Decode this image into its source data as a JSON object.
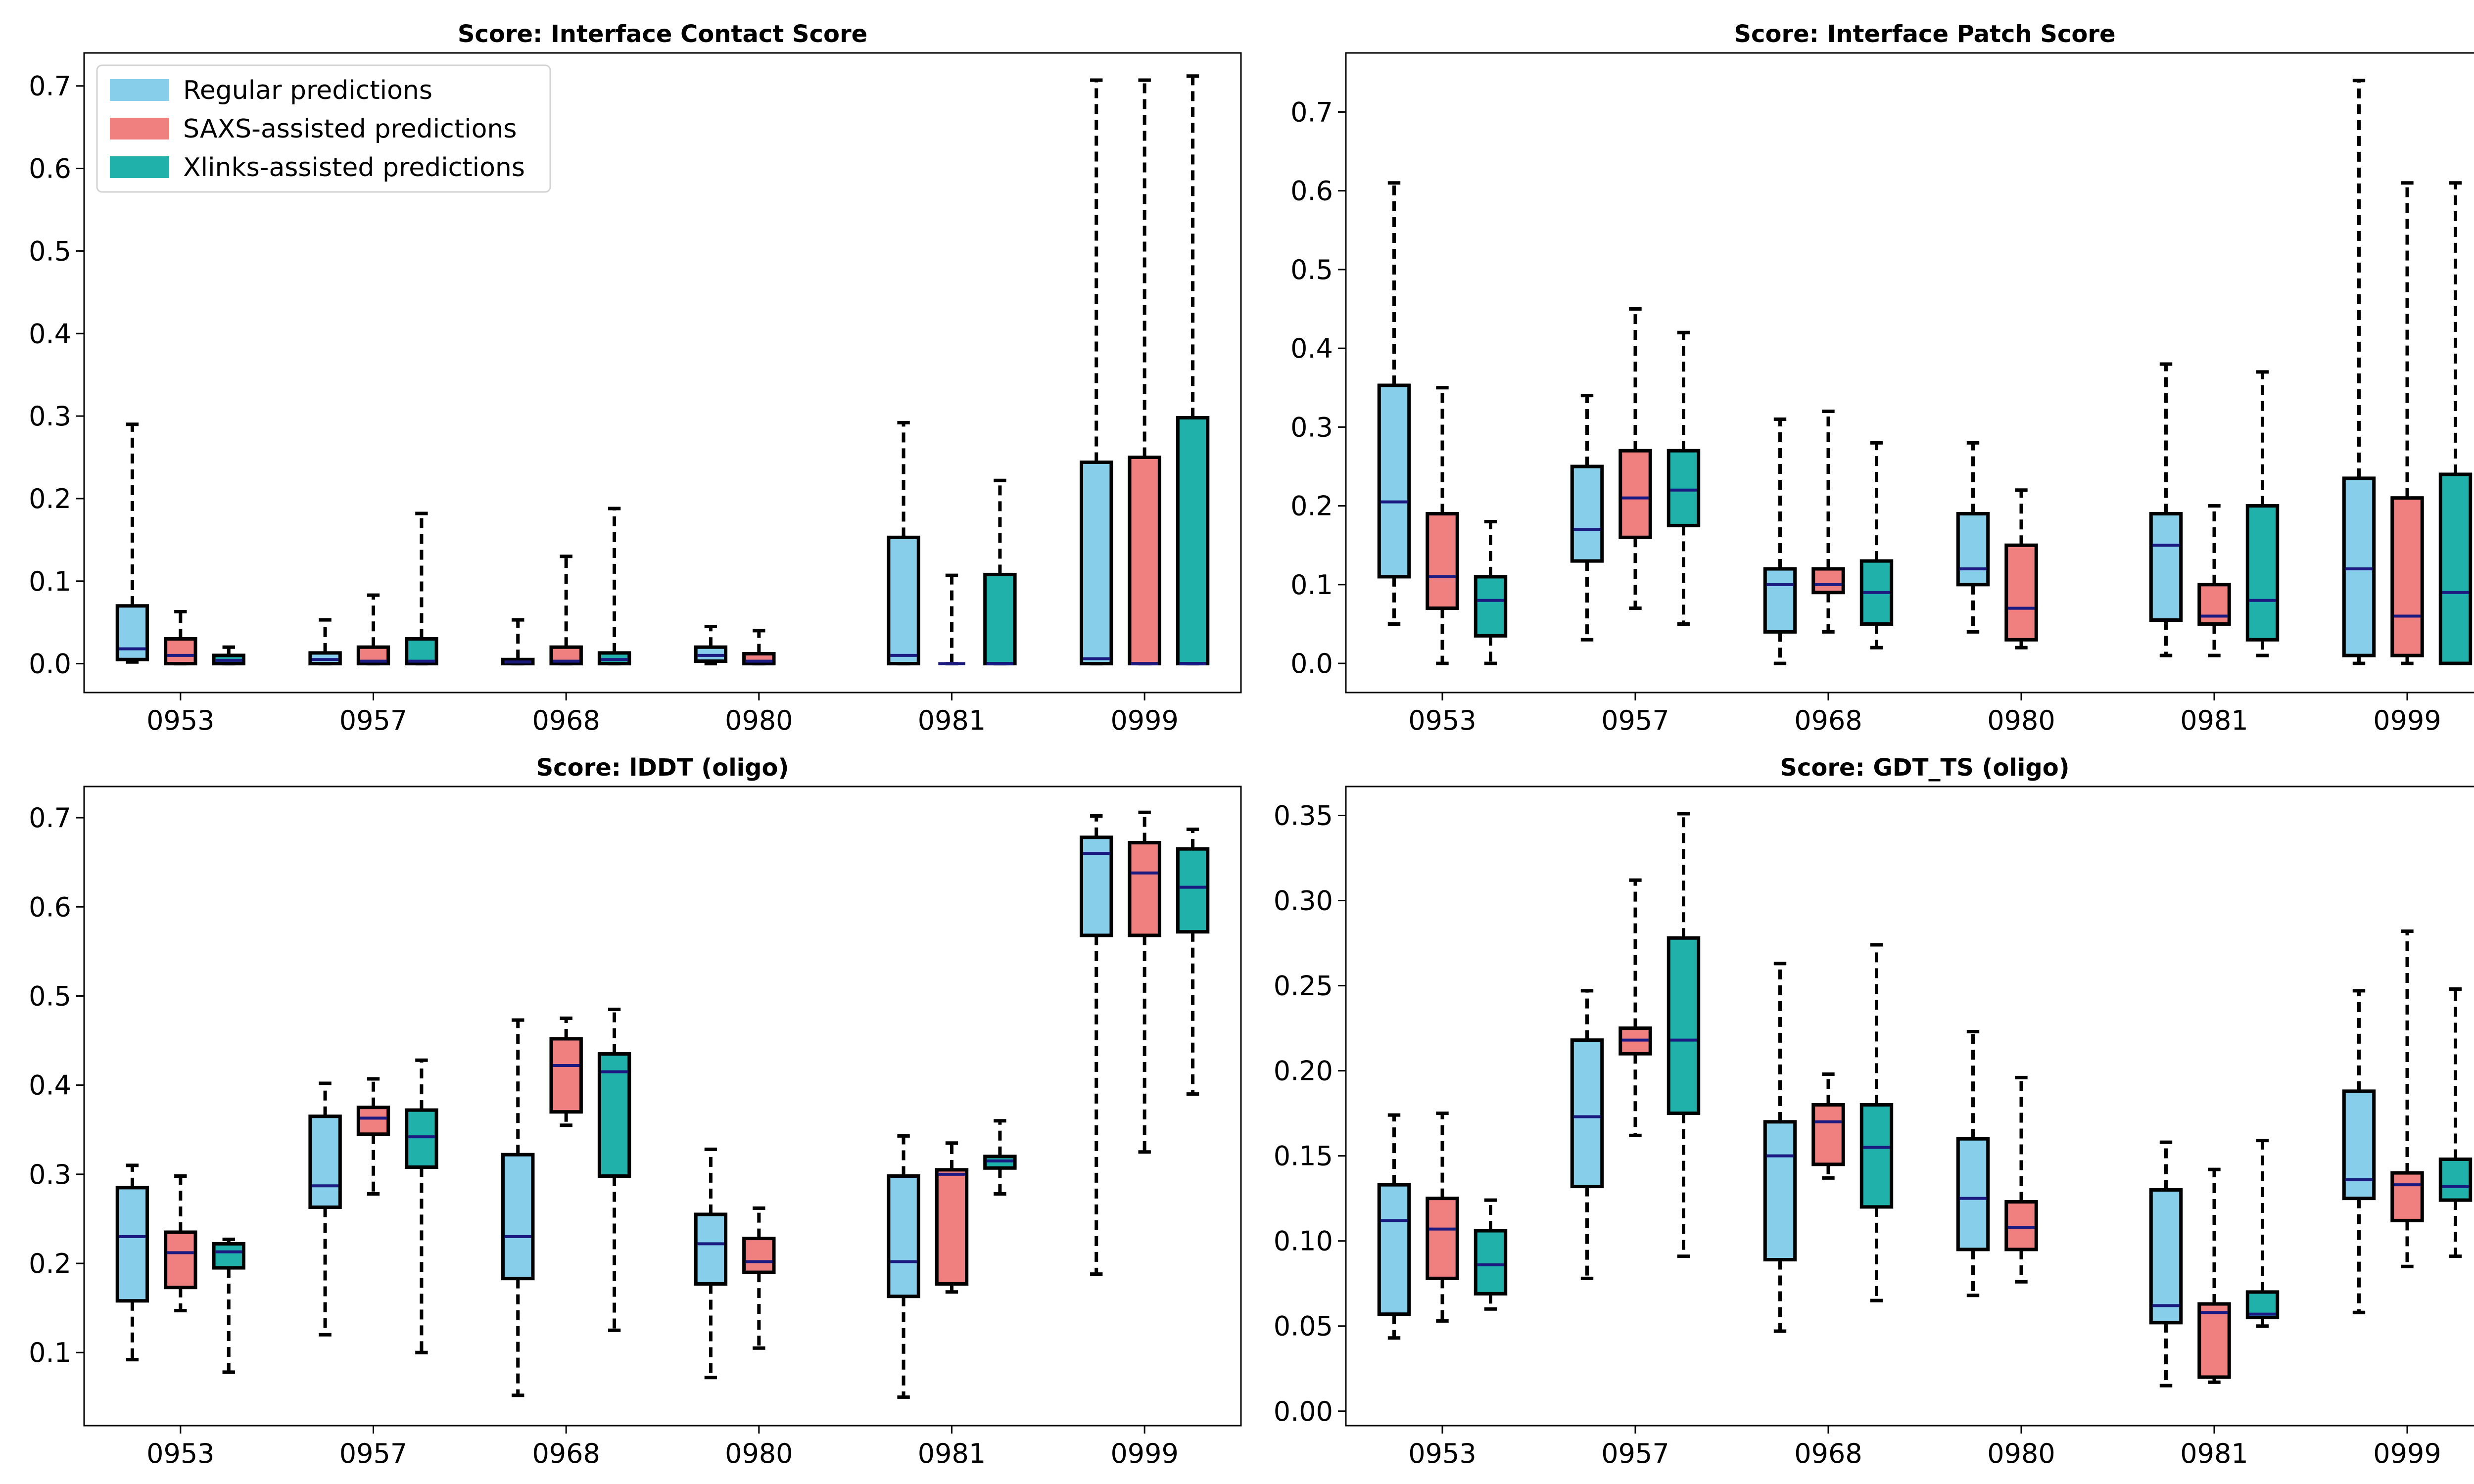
{
  "colors": {
    "regular": "#87ceeb",
    "saxs": "#f08080",
    "xlinks": "#20b2aa",
    "median": "#1a1a80",
    "edge": "#000000"
  },
  "legend": {
    "placement": "top-left",
    "entries": [
      {
        "label": "Regular predictions",
        "color": "#87ceeb"
      },
      {
        "label": "SAXS-assisted predictions",
        "color": "#f08080"
      },
      {
        "label": "Xlinks-assisted predictions",
        "color": "#20b2aa"
      }
    ]
  },
  "chart_data": [
    {
      "type": "boxplot",
      "title": "Score: Interface Contact Score",
      "categories": [
        "0953",
        "0957",
        "0968",
        "0980",
        "0981",
        "0999"
      ],
      "ylim": [
        -0.035,
        0.74
      ],
      "yticks": [
        0.0,
        0.1,
        0.2,
        0.3,
        0.4,
        0.5,
        0.6,
        0.7
      ],
      "tick_decimals": 1,
      "series": [
        {
          "name": "Regular predictions",
          "boxes": [
            {
              "whislo": 0.002,
              "q1": 0.005,
              "med": 0.018,
              "q3": 0.07,
              "whishi": 0.29
            },
            {
              "whislo": 0.0,
              "q1": 0.0,
              "med": 0.005,
              "q3": 0.013,
              "whishi": 0.053
            },
            {
              "whislo": 0.0,
              "q1": 0.0,
              "med": 0.002,
              "q3": 0.005,
              "whishi": 0.053
            },
            {
              "whislo": 0.0,
              "q1": 0.003,
              "med": 0.01,
              "q3": 0.02,
              "whishi": 0.045
            },
            {
              "whislo": 0.0,
              "q1": 0.0,
              "med": 0.01,
              "q3": 0.153,
              "whishi": 0.292
            },
            {
              "whislo": 0.0,
              "q1": 0.0,
              "med": 0.006,
              "q3": 0.244,
              "whishi": 0.707
            }
          ]
        },
        {
          "name": "SAXS-assisted predictions",
          "boxes": [
            {
              "whislo": 0.0,
              "q1": 0.0,
              "med": 0.01,
              "q3": 0.03,
              "whishi": 0.063
            },
            {
              "whislo": 0.0,
              "q1": 0.0,
              "med": 0.003,
              "q3": 0.02,
              "whishi": 0.083
            },
            {
              "whislo": 0.0,
              "q1": 0.0,
              "med": 0.003,
              "q3": 0.02,
              "whishi": 0.13
            },
            {
              "whislo": 0.0,
              "q1": 0.0,
              "med": 0.003,
              "q3": 0.012,
              "whishi": 0.04
            },
            {
              "whislo": 0.0,
              "q1": 0.0,
              "med": 0.0,
              "q3": 0.0,
              "whishi": 0.107
            },
            {
              "whislo": 0.0,
              "q1": 0.0,
              "med": 0.0,
              "q3": 0.25,
              "whishi": 0.707
            }
          ]
        },
        {
          "name": "Xlinks-assisted predictions",
          "boxes": [
            {
              "whislo": 0.0,
              "q1": 0.0,
              "med": 0.004,
              "q3": 0.01,
              "whishi": 0.02
            },
            {
              "whislo": 0.0,
              "q1": 0.0,
              "med": 0.003,
              "q3": 0.03,
              "whishi": 0.182
            },
            {
              "whislo": 0.0,
              "q1": 0.0,
              "med": 0.005,
              "q3": 0.013,
              "whishi": 0.188
            },
            null,
            {
              "whislo": 0.0,
              "q1": 0.0,
              "med": 0.0,
              "q3": 0.108,
              "whishi": 0.222
            },
            {
              "whislo": 0.0,
              "q1": 0.0,
              "med": 0.0,
              "q3": 0.298,
              "whishi": 0.712
            }
          ]
        }
      ]
    },
    {
      "type": "boxplot",
      "title": "Score: Interface Patch Score",
      "categories": [
        "0953",
        "0957",
        "0968",
        "0980",
        "0981",
        "0999"
      ],
      "ylim": [
        -0.037,
        0.775
      ],
      "yticks": [
        0.0,
        0.1,
        0.2,
        0.3,
        0.4,
        0.5,
        0.6,
        0.7
      ],
      "tick_decimals": 1,
      "series": [
        {
          "name": "Regular predictions",
          "boxes": [
            {
              "whislo": 0.05,
              "q1": 0.11,
              "med": 0.205,
              "q3": 0.353,
              "whishi": 0.61
            },
            {
              "whislo": 0.03,
              "q1": 0.13,
              "med": 0.17,
              "q3": 0.25,
              "whishi": 0.34
            },
            {
              "whislo": 0.0,
              "q1": 0.04,
              "med": 0.1,
              "q3": 0.12,
              "whishi": 0.31
            },
            {
              "whislo": 0.04,
              "q1": 0.1,
              "med": 0.12,
              "q3": 0.19,
              "whishi": 0.28
            },
            {
              "whislo": 0.01,
              "q1": 0.055,
              "med": 0.15,
              "q3": 0.19,
              "whishi": 0.38
            },
            {
              "whislo": 0.0,
              "q1": 0.01,
              "med": 0.12,
              "q3": 0.235,
              "whishi": 0.74
            }
          ]
        },
        {
          "name": "SAXS-assisted predictions",
          "boxes": [
            {
              "whislo": 0.0,
              "q1": 0.07,
              "med": 0.11,
              "q3": 0.19,
              "whishi": 0.35
            },
            {
              "whislo": 0.07,
              "q1": 0.16,
              "med": 0.21,
              "q3": 0.27,
              "whishi": 0.45
            },
            {
              "whislo": 0.04,
              "q1": 0.09,
              "med": 0.1,
              "q3": 0.12,
              "whishi": 0.32
            },
            {
              "whislo": 0.02,
              "q1": 0.03,
              "med": 0.07,
              "q3": 0.15,
              "whishi": 0.22
            },
            {
              "whislo": 0.01,
              "q1": 0.05,
              "med": 0.06,
              "q3": 0.1,
              "whishi": 0.2
            },
            {
              "whislo": 0.0,
              "q1": 0.01,
              "med": 0.06,
              "q3": 0.21,
              "whishi": 0.61
            }
          ]
        },
        {
          "name": "Xlinks-assisted predictions",
          "boxes": [
            {
              "whislo": 0.0,
              "q1": 0.035,
              "med": 0.08,
              "q3": 0.11,
              "whishi": 0.18
            },
            {
              "whislo": 0.05,
              "q1": 0.175,
              "med": 0.22,
              "q3": 0.27,
              "whishi": 0.42
            },
            {
              "whislo": 0.02,
              "q1": 0.05,
              "med": 0.09,
              "q3": 0.13,
              "whishi": 0.28
            },
            null,
            {
              "whislo": 0.01,
              "q1": 0.03,
              "med": 0.08,
              "q3": 0.2,
              "whishi": 0.37
            },
            {
              "whislo": 0.0,
              "q1": 0.0,
              "med": 0.09,
              "q3": 0.24,
              "whishi": 0.61
            }
          ]
        }
      ]
    },
    {
      "type": "boxplot",
      "title": "Score: lDDT (oligo)",
      "categories": [
        "0953",
        "0957",
        "0968",
        "0980",
        "0981",
        "0999"
      ],
      "ylim": [
        0.018,
        0.735
      ],
      "yticks": [
        0.1,
        0.2,
        0.3,
        0.4,
        0.5,
        0.6,
        0.7
      ],
      "tick_decimals": 1,
      "series": [
        {
          "name": "Regular predictions",
          "boxes": [
            {
              "whislo": 0.092,
              "q1": 0.158,
              "med": 0.23,
              "q3": 0.285,
              "whishi": 0.31
            },
            {
              "whislo": 0.12,
              "q1": 0.263,
              "med": 0.287,
              "q3": 0.365,
              "whishi": 0.402
            },
            {
              "whislo": 0.052,
              "q1": 0.183,
              "med": 0.23,
              "q3": 0.322,
              "whishi": 0.473
            },
            {
              "whislo": 0.072,
              "q1": 0.177,
              "med": 0.222,
              "q3": 0.255,
              "whishi": 0.328
            },
            {
              "whislo": 0.05,
              "q1": 0.163,
              "med": 0.202,
              "q3": 0.298,
              "whishi": 0.343
            },
            {
              "whislo": 0.188,
              "q1": 0.568,
              "med": 0.66,
              "q3": 0.678,
              "whishi": 0.702
            }
          ]
        },
        {
          "name": "SAXS-assisted predictions",
          "boxes": [
            {
              "whislo": 0.147,
              "q1": 0.173,
              "med": 0.212,
              "q3": 0.235,
              "whishi": 0.298
            },
            {
              "whislo": 0.278,
              "q1": 0.345,
              "med": 0.363,
              "q3": 0.375,
              "whishi": 0.407
            },
            {
              "whislo": 0.355,
              "q1": 0.37,
              "med": 0.422,
              "q3": 0.452,
              "whishi": 0.475
            },
            {
              "whislo": 0.105,
              "q1": 0.19,
              "med": 0.202,
              "q3": 0.228,
              "whishi": 0.262
            },
            {
              "whislo": 0.168,
              "q1": 0.177,
              "med": 0.3,
              "q3": 0.305,
              "whishi": 0.335
            },
            {
              "whislo": 0.325,
              "q1": 0.568,
              "med": 0.638,
              "q3": 0.672,
              "whishi": 0.706
            }
          ]
        },
        {
          "name": "Xlinks-assisted predictions",
          "boxes": [
            {
              "whislo": 0.078,
              "q1": 0.195,
              "med": 0.213,
              "q3": 0.222,
              "whishi": 0.227
            },
            {
              "whislo": 0.1,
              "q1": 0.308,
              "med": 0.342,
              "q3": 0.372,
              "whishi": 0.428
            },
            {
              "whislo": 0.125,
              "q1": 0.298,
              "med": 0.415,
              "q3": 0.435,
              "whishi": 0.485
            },
            null,
            {
              "whislo": 0.278,
              "q1": 0.307,
              "med": 0.315,
              "q3": 0.32,
              "whishi": 0.36
            },
            {
              "whislo": 0.39,
              "q1": 0.572,
              "med": 0.622,
              "q3": 0.665,
              "whishi": 0.687
            }
          ]
        }
      ]
    },
    {
      "type": "boxplot",
      "title": "Score: GDT_TS (oligo)",
      "categories": [
        "0953",
        "0957",
        "0968",
        "0980",
        "0981",
        "0999"
      ],
      "ylim": [
        -0.0085,
        0.367
      ],
      "yticks": [
        0.0,
        0.05,
        0.1,
        0.15,
        0.2,
        0.25,
        0.3,
        0.35
      ],
      "tick_decimals": 2,
      "series": [
        {
          "name": "Regular predictions",
          "boxes": [
            {
              "whislo": 0.043,
              "q1": 0.057,
              "med": 0.112,
              "q3": 0.133,
              "whishi": 0.174
            },
            {
              "whislo": 0.078,
              "q1": 0.132,
              "med": 0.173,
              "q3": 0.218,
              "whishi": 0.247
            },
            {
              "whislo": 0.047,
              "q1": 0.089,
              "med": 0.15,
              "q3": 0.17,
              "whishi": 0.263
            },
            {
              "whislo": 0.068,
              "q1": 0.095,
              "med": 0.125,
              "q3": 0.16,
              "whishi": 0.223
            },
            {
              "whislo": 0.015,
              "q1": 0.052,
              "med": 0.062,
              "q3": 0.13,
              "whishi": 0.158
            },
            {
              "whislo": 0.058,
              "q1": 0.125,
              "med": 0.136,
              "q3": 0.188,
              "whishi": 0.247
            }
          ]
        },
        {
          "name": "SAXS-assisted predictions",
          "boxes": [
            {
              "whislo": 0.053,
              "q1": 0.078,
              "med": 0.107,
              "q3": 0.125,
              "whishi": 0.175
            },
            {
              "whislo": 0.162,
              "q1": 0.21,
              "med": 0.218,
              "q3": 0.225,
              "whishi": 0.312
            },
            {
              "whislo": 0.137,
              "q1": 0.145,
              "med": 0.17,
              "q3": 0.18,
              "whishi": 0.198
            },
            {
              "whislo": 0.076,
              "q1": 0.095,
              "med": 0.108,
              "q3": 0.123,
              "whishi": 0.196
            },
            {
              "whislo": 0.017,
              "q1": 0.02,
              "med": 0.058,
              "q3": 0.063,
              "whishi": 0.142
            },
            {
              "whislo": 0.085,
              "q1": 0.112,
              "med": 0.133,
              "q3": 0.14,
              "whishi": 0.282
            }
          ]
        },
        {
          "name": "Xlinks-assisted predictions",
          "boxes": [
            {
              "whislo": 0.06,
              "q1": 0.069,
              "med": 0.086,
              "q3": 0.106,
              "whishi": 0.124
            },
            {
              "whislo": 0.091,
              "q1": 0.175,
              "med": 0.218,
              "q3": 0.278,
              "whishi": 0.351
            },
            {
              "whislo": 0.065,
              "q1": 0.12,
              "med": 0.155,
              "q3": 0.18,
              "whishi": 0.274
            },
            null,
            {
              "whislo": 0.05,
              "q1": 0.055,
              "med": 0.057,
              "q3": 0.07,
              "whishi": 0.159
            },
            {
              "whislo": 0.091,
              "q1": 0.124,
              "med": 0.132,
              "q3": 0.148,
              "whishi": 0.248
            }
          ]
        }
      ]
    }
  ]
}
